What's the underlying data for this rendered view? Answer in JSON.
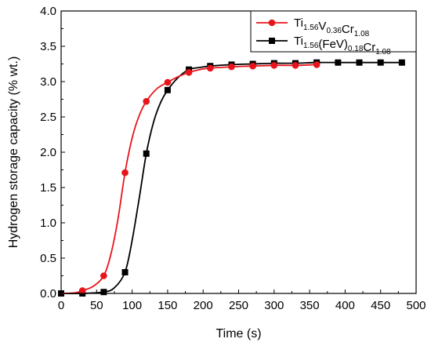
{
  "chart_data": {
    "type": "line",
    "xlabel": "Time (s)",
    "ylabel": "Hydrogen storage capacity (% wt.)",
    "xlim": [
      0,
      500
    ],
    "ylim": [
      0.0,
      4.0
    ],
    "x_ticks": [
      "0",
      "50",
      "100",
      "150",
      "200",
      "250",
      "300",
      "350",
      "400",
      "450",
      "500"
    ],
    "y_ticks": [
      "0.0",
      "0.5",
      "1.0",
      "1.5",
      "2.0",
      "2.5",
      "3.0",
      "3.5",
      "4.0"
    ],
    "grid": false,
    "legend_position": "top-right",
    "series": [
      {
        "name": "Ti1.56V0.36Cr1.08",
        "legend_parts": [
          [
            "Ti",
            "1.56"
          ],
          [
            "V",
            "0.36"
          ],
          [
            "Cr",
            "1.08"
          ]
        ],
        "color": "#e8141b",
        "marker": "circle",
        "points": [
          [
            30,
            0.04
          ],
          [
            60,
            0.25
          ],
          [
            90,
            1.71
          ],
          [
            120,
            2.72
          ],
          [
            150,
            2.99
          ],
          [
            180,
            3.13
          ],
          [
            210,
            3.19
          ],
          [
            240,
            3.21
          ],
          [
            270,
            3.22
          ],
          [
            300,
            3.23
          ],
          [
            330,
            3.23
          ],
          [
            360,
            3.24
          ]
        ],
        "curve": [
          [
            0,
            0.0
          ],
          [
            20,
            0.01
          ],
          [
            30,
            0.04
          ],
          [
            45,
            0.1
          ],
          [
            60,
            0.25
          ],
          [
            70,
            0.55
          ],
          [
            80,
            1.05
          ],
          [
            90,
            1.71
          ],
          [
            100,
            2.2
          ],
          [
            110,
            2.52
          ],
          [
            120,
            2.72
          ],
          [
            135,
            2.9
          ],
          [
            150,
            2.99
          ],
          [
            165,
            3.07
          ],
          [
            180,
            3.13
          ],
          [
            195,
            3.17
          ],
          [
            210,
            3.19
          ],
          [
            240,
            3.21
          ],
          [
            270,
            3.22
          ],
          [
            300,
            3.23
          ],
          [
            330,
            3.23
          ],
          [
            360,
            3.24
          ]
        ]
      },
      {
        "name": "Ti1.56(FeV)0.18Cr1.08",
        "legend_parts": [
          [
            "Ti",
            "1.56"
          ],
          [
            "(FeV)",
            "0.18"
          ],
          [
            "Cr",
            "1.08"
          ]
        ],
        "color": "#000000",
        "marker": "square",
        "points": [
          [
            0,
            0.0
          ],
          [
            30,
            0.0
          ],
          [
            60,
            0.02
          ],
          [
            90,
            0.3
          ],
          [
            120,
            1.98
          ],
          [
            150,
            2.88
          ],
          [
            180,
            3.17
          ],
          [
            210,
            3.22
          ],
          [
            240,
            3.24
          ],
          [
            270,
            3.25
          ],
          [
            300,
            3.26
          ],
          [
            330,
            3.26
          ],
          [
            360,
            3.27
          ],
          [
            390,
            3.27
          ],
          [
            420,
            3.27
          ],
          [
            450,
            3.27
          ],
          [
            480,
            3.27
          ]
        ],
        "curve": [
          [
            0,
            0.0
          ],
          [
            30,
            0.0
          ],
          [
            60,
            0.02
          ],
          [
            75,
            0.08
          ],
          [
            90,
            0.3
          ],
          [
            100,
            0.75
          ],
          [
            110,
            1.35
          ],
          [
            120,
            1.98
          ],
          [
            130,
            2.42
          ],
          [
            140,
            2.7
          ],
          [
            150,
            2.88
          ],
          [
            165,
            3.06
          ],
          [
            180,
            3.17
          ],
          [
            195,
            3.2
          ],
          [
            210,
            3.22
          ],
          [
            240,
            3.24
          ],
          [
            270,
            3.25
          ],
          [
            300,
            3.26
          ],
          [
            330,
            3.26
          ],
          [
            360,
            3.27
          ],
          [
            390,
            3.27
          ],
          [
            420,
            3.27
          ],
          [
            450,
            3.27
          ],
          [
            480,
            3.27
          ]
        ]
      }
    ]
  }
}
